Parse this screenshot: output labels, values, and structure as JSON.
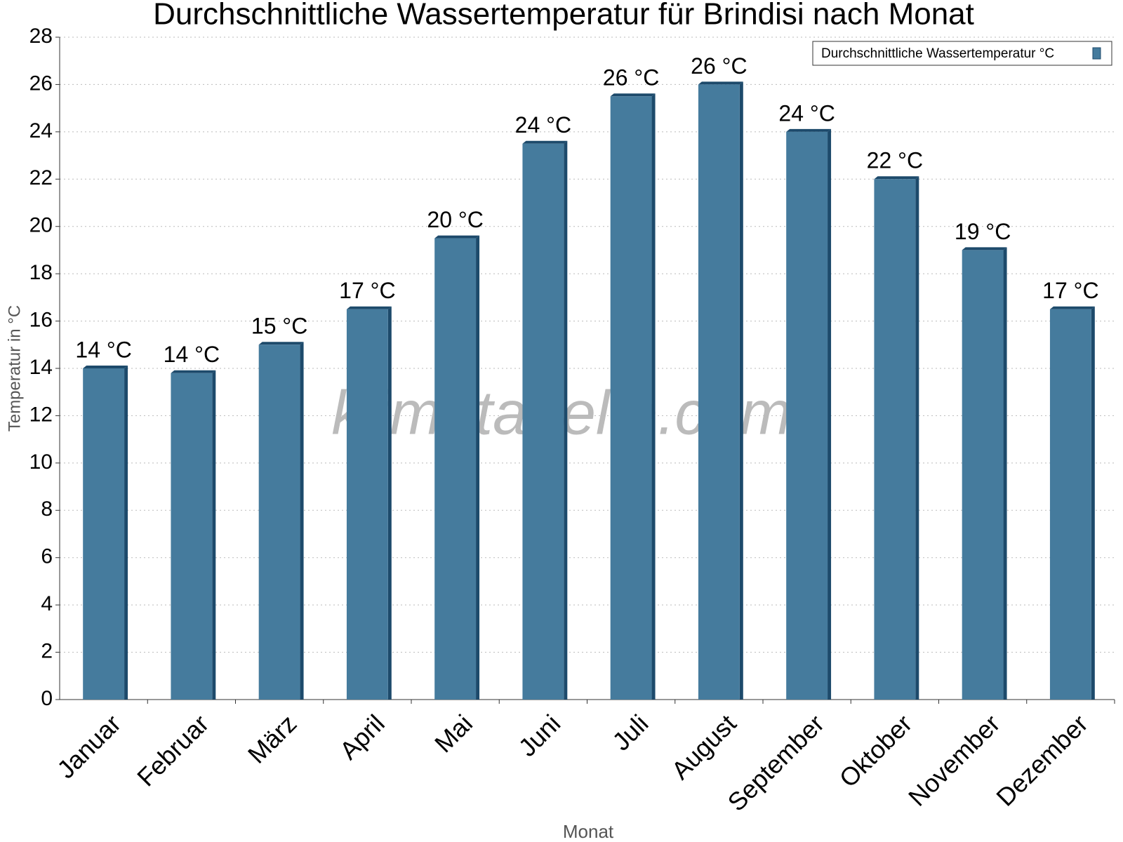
{
  "chart_data": {
    "type": "bar",
    "title": "Durchschnittliche Wassertemperatur für Brindisi nach Monat",
    "x_label": "Monat",
    "y_label": "Temperatur in °C",
    "watermark": "klimatabelle.com",
    "categories": [
      "Januar",
      "Februar",
      "März",
      "April",
      "Mai",
      "Juni",
      "Juli",
      "August",
      "September",
      "Oktober",
      "November",
      "Dezember"
    ],
    "series": [
      {
        "name": "Durchschnittliche Wassertemperatur °C",
        "color": "#457b9d",
        "values": [
          14.0,
          13.8,
          15.0,
          16.5,
          19.5,
          23.5,
          25.5,
          26.0,
          24.0,
          22.0,
          19.0,
          16.5
        ],
        "value_labels": [
          "14 °C",
          "14 °C",
          "15 °C",
          "17 °C",
          "20 °C",
          "24 °C",
          "26 °C",
          "26 °C",
          "24 °C",
          "22 °C",
          "19 °C",
          "17 °C"
        ]
      }
    ],
    "ylim": [
      0,
      28
    ],
    "yticks": [
      0,
      2,
      4,
      6,
      8,
      10,
      12,
      14,
      16,
      18,
      20,
      22,
      24,
      26,
      28
    ],
    "grid": true,
    "legend": "top-right"
  }
}
